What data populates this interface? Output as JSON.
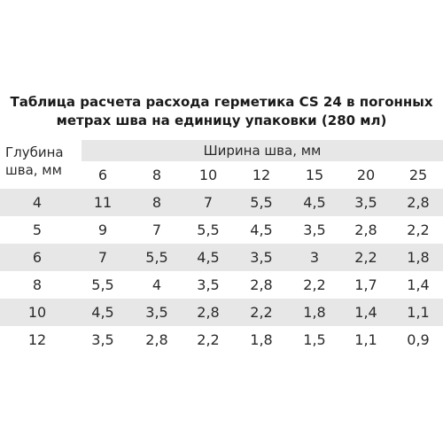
{
  "title": {
    "line1": "Таблица расчета расхода герметика CS 24 в погонных",
    "line2": "метрах шва на единицу упаковки (280 мл)"
  },
  "row_header": {
    "line1": "Глубина",
    "line2": "шва, мм"
  },
  "col_header": "Ширина шва, мм",
  "widths": [
    "6",
    "8",
    "10",
    "12",
    "15",
    "20",
    "25"
  ],
  "rows": [
    {
      "depth": "4",
      "values": [
        "11",
        "8",
        "7",
        "5,5",
        "4,5",
        "3,5",
        "2,8"
      ]
    },
    {
      "depth": "5",
      "values": [
        "9",
        "7",
        "5,5",
        "4,5",
        "3,5",
        "2,8",
        "2,2"
      ]
    },
    {
      "depth": "6",
      "values": [
        "7",
        "5,5",
        "4,5",
        "3,5",
        "3",
        "2,2",
        "1,8"
      ]
    },
    {
      "depth": "8",
      "values": [
        "5,5",
        "4",
        "3,5",
        "2,8",
        "2,2",
        "1,7",
        "1,4"
      ]
    },
    {
      "depth": "10",
      "values": [
        "4,5",
        "3,5",
        "2,8",
        "2,2",
        "1,8",
        "1,4",
        "1,1"
      ]
    },
    {
      "depth": "12",
      "values": [
        "3,5",
        "2,8",
        "2,2",
        "1,8",
        "1,5",
        "1,1",
        "0,9"
      ]
    }
  ],
  "colors": {
    "stripe": "#e7e7e7",
    "text": "#2a2a2a"
  }
}
